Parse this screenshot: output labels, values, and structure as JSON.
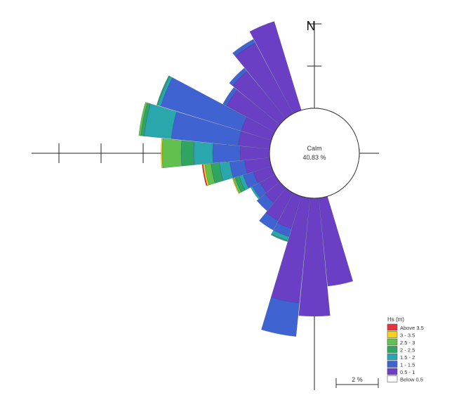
{
  "chart_data": {
    "type": "windrose",
    "north_label": "N",
    "calm_label": "Calm",
    "calm_value": "40.83 %",
    "scale_label": "2 %",
    "legend": {
      "title": "Hs (m)",
      "placement": "bottom-right",
      "items": [
        {
          "label": "Above 3.5",
          "color": "#e8323c"
        },
        {
          "label": "3 - 3.5",
          "color": "#f5d21c"
        },
        {
          "label": "2.5 - 3",
          "color": "#62c04e"
        },
        {
          "label": "2 - 2.5",
          "color": "#2fa560"
        },
        {
          "label": "1.5 - 2",
          "color": "#2aa7ad"
        },
        {
          "label": "1 - 1.5",
          "color": "#3f63d0"
        },
        {
          "label": "0.5 - 1",
          "color": "#6a3fc4"
        },
        {
          "label": "Below 0.5",
          "color": "#ffffff"
        }
      ]
    },
    "sector_width_deg": 11.25,
    "stack_order": [
      "0.5 - 1",
      "1 - 1.5",
      "1.5 - 2",
      "2 - 2.5",
      "2.5 - 3",
      "3 - 3.5",
      "Above 3.5"
    ],
    "sectors": [
      {
        "direction_deg": 337.5,
        "values": [
          4.4
        ]
      },
      {
        "direction_deg": 326.25,
        "values": [
          3.8,
          0.2
        ]
      },
      {
        "direction_deg": 315,
        "values": [
          2.9,
          0.2
        ]
      },
      {
        "direction_deg": 303.75,
        "values": [
          2.6,
          0.2
        ]
      },
      {
        "direction_deg": 292.5,
        "values": [
          1.5,
          4.0,
          0.15,
          0.05
        ]
      },
      {
        "direction_deg": 281.25,
        "values": [
          1.5,
          3.2,
          1.3,
          0.15,
          0.1
        ]
      },
      {
        "direction_deg": 270,
        "values": [
          1.4,
          1.3,
          0.9,
          0.6,
          0.9,
          0.05
        ]
      },
      {
        "direction_deg": 258.75,
        "values": [
          1.2,
          0.7,
          0.5,
          0.4,
          0.3,
          0.08,
          0.05
        ]
      },
      {
        "direction_deg": 247.5,
        "values": [
          0.9,
          0.5,
          0.2,
          0.2,
          0.1,
          0.04
        ]
      },
      {
        "direction_deg": 236.25,
        "values": [
          0.8,
          0.4,
          0.1
        ]
      },
      {
        "direction_deg": 225,
        "values": [
          0.9,
          0.5
        ]
      },
      {
        "direction_deg": 213.75,
        "values": [
          1.5,
          0.5
        ]
      },
      {
        "direction_deg": 202.5,
        "values": [
          1.6,
          0.4,
          0.2,
          0.05
        ]
      },
      {
        "direction_deg": 191.25,
        "values": [
          5.0,
          1.6
        ]
      },
      {
        "direction_deg": 180,
        "values": [
          5.6
        ]
      },
      {
        "direction_deg": 168.75,
        "values": [
          4.2
        ]
      }
    ]
  }
}
